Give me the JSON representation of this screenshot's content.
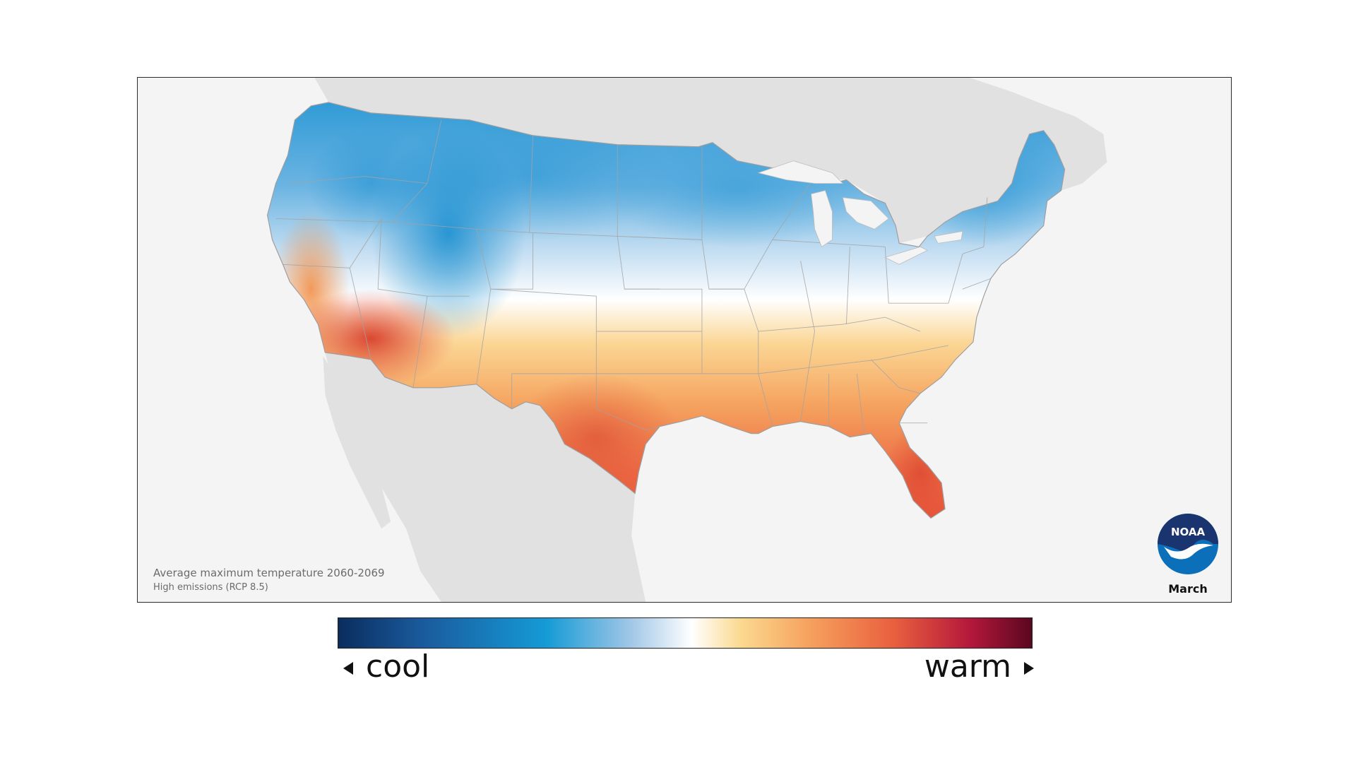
{
  "map": {
    "caption_title": "Average maximum temperature 2060-2069",
    "caption_subtitle": "High emissions (RCP 8.5)",
    "month": "March",
    "logo": {
      "text": "NOAA",
      "icon": "noaa-logo-icon"
    },
    "region": "contiguous United States",
    "colors": {
      "water": "#f4f4f4",
      "neighbor_land": "#e1e1e1",
      "boundary": "#9e9e9e",
      "coolest": "#0a2d5e",
      "cool": "#159bd6",
      "neutral": "#ffffff",
      "warm": "#f6a15d",
      "warmest": "#5a0720"
    }
  },
  "legend": {
    "cool_label": "cool",
    "warm_label": "warm",
    "left_arrow_icon": "triangle-left-icon",
    "right_arrow_icon": "triangle-right-icon"
  }
}
